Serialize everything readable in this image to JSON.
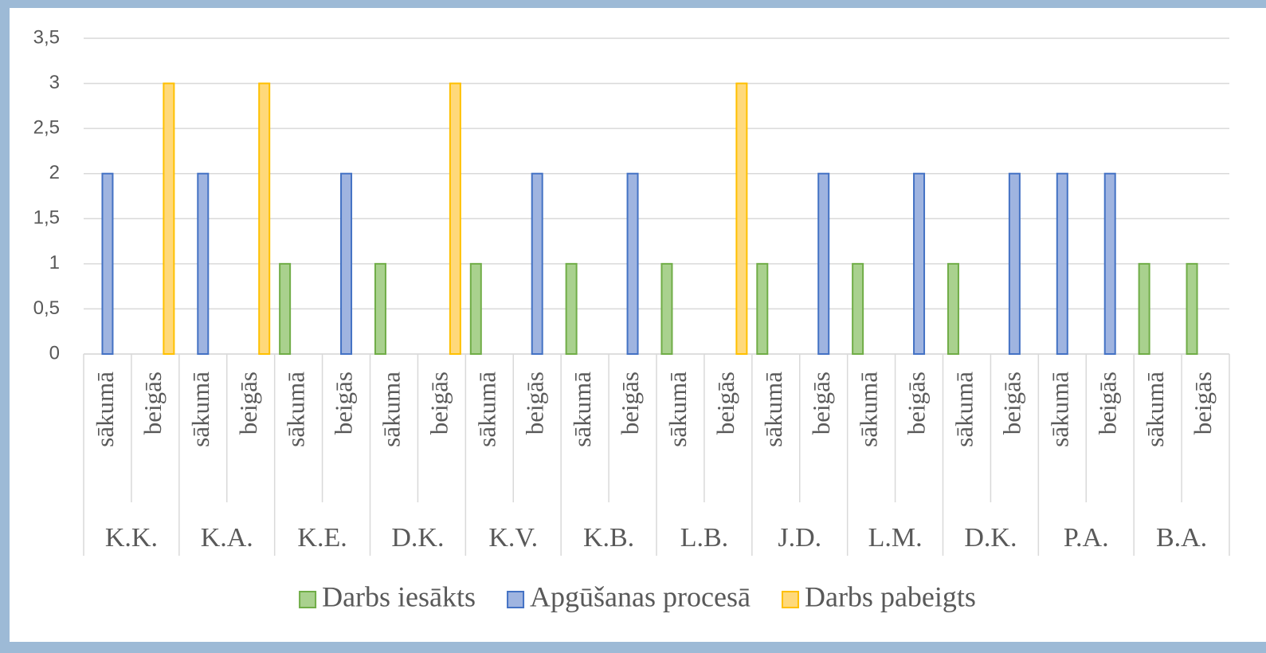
{
  "chart_data": {
    "type": "bar",
    "categories": [
      "sākumā",
      "beigās",
      "sākumā",
      "beigās",
      "sākumā",
      "beigās",
      "sākuma",
      "beigās",
      "sākumā",
      "beigās",
      "sākumā",
      "beigās",
      "sākumā",
      "beigās",
      "sākumā",
      "beigās",
      "sākumā",
      "beigās",
      "sākumā",
      "beigās",
      "sākumā",
      "beigās",
      "sākumā",
      "beigās"
    ],
    "groups": [
      "K.K.",
      "K.A.",
      "K.E.",
      "D.K.",
      "K.V.",
      "K.B.",
      "L.B.",
      "J.D.",
      "L.M.",
      "D.K.",
      "P.A.",
      "B.A."
    ],
    "series": [
      {
        "name": "Darbs iesākts",
        "color": "#a9d18e",
        "stroke": "#70ad47",
        "values": [
          null,
          null,
          null,
          null,
          1,
          null,
          1,
          null,
          1,
          null,
          1,
          null,
          1,
          null,
          1,
          null,
          1,
          null,
          1,
          null,
          null,
          null,
          1,
          1
        ]
      },
      {
        "name": "Apgūšanas procesā",
        "color": "#9fb4e0",
        "stroke": "#4472c4",
        "values": [
          2,
          null,
          2,
          null,
          null,
          2,
          null,
          null,
          null,
          2,
          null,
          2,
          null,
          null,
          null,
          2,
          null,
          2,
          null,
          2,
          2,
          2,
          null,
          null
        ]
      },
      {
        "name": "Darbs pabeigts",
        "color": "#ffd97a",
        "stroke": "#ffc000",
        "values": [
          null,
          3,
          null,
          3,
          null,
          null,
          null,
          3,
          null,
          null,
          null,
          null,
          null,
          3,
          null,
          null,
          null,
          null,
          null,
          null,
          null,
          null,
          null,
          null
        ]
      }
    ],
    "ylim": [
      0,
      3.5
    ],
    "yticks": [
      0,
      {
        "value": 0.5,
        "label": "0,5"
      },
      1,
      {
        "value": 1.5,
        "label": "1,5"
      },
      2,
      {
        "value": 2.5,
        "label": "2,5"
      },
      3,
      {
        "value": 3.5,
        "label": "3,5"
      }
    ],
    "grid": true,
    "legend": "bottom"
  }
}
